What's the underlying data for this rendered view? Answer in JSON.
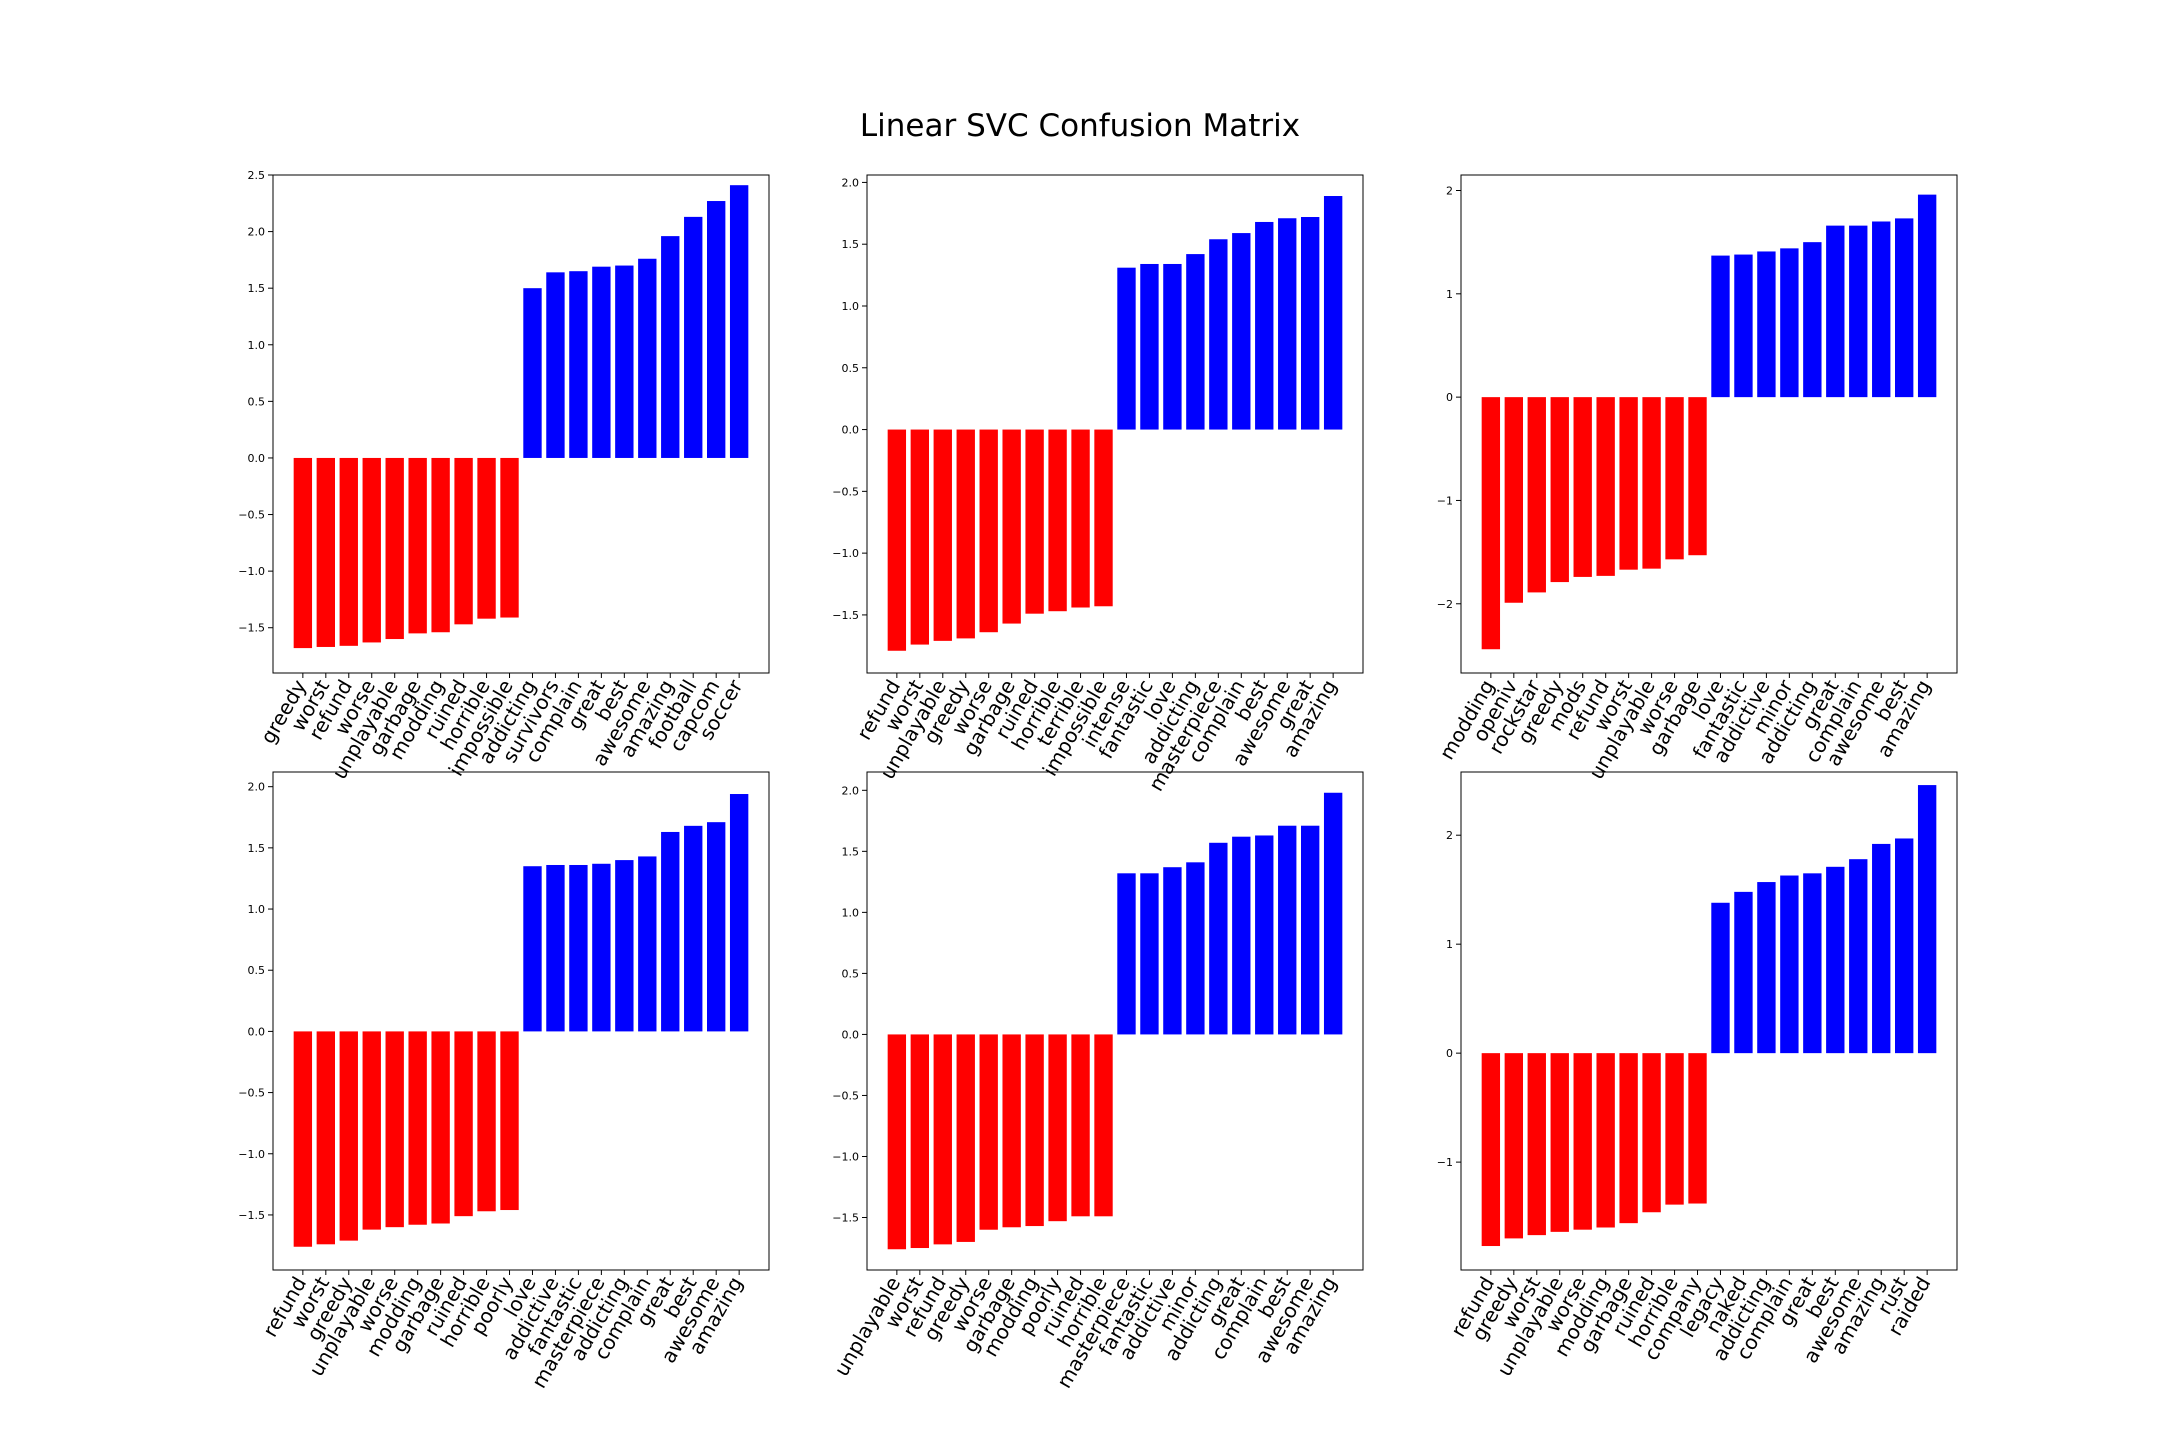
{
  "title": "Linear SVC Confusion Matrix",
  "colors": {
    "negative": "#ff0000",
    "positive": "#0000ff",
    "axis": "#000000"
  },
  "chart_data": [
    {
      "type": "bar",
      "categories": [
        "greedy",
        "worst",
        "refund",
        "worse",
        "unplayable",
        "garbage",
        "modding",
        "ruined",
        "horrible",
        "impossible",
        "addicting",
        "survivors",
        "complain",
        "great",
        "best",
        "awesome",
        "amazing",
        "football",
        "capcom",
        "soccer"
      ],
      "values": [
        -1.68,
        -1.67,
        -1.66,
        -1.63,
        -1.6,
        -1.55,
        -1.54,
        -1.47,
        -1.42,
        -1.41,
        1.5,
        1.64,
        1.65,
        1.69,
        1.7,
        1.76,
        1.96,
        2.13,
        2.27,
        2.41
      ],
      "ylim": [
        -1.9,
        2.5
      ],
      "yticks": [
        -1.5,
        -1.0,
        -0.5,
        0.0,
        0.5,
        1.0,
        1.5,
        2.0,
        2.5
      ],
      "ytick_labels": [
        "−1.5",
        "−1.0",
        "−0.5",
        "0.0",
        "0.5",
        "1.0",
        "1.5",
        "2.0",
        "2.5"
      ]
    },
    {
      "type": "bar",
      "categories": [
        "refund",
        "worst",
        "unplayable",
        "greedy",
        "worse",
        "garbage",
        "ruined",
        "horrible",
        "terrible",
        "impossible",
        "intense",
        "fantastic",
        "love",
        "addicting",
        "masterpiece",
        "complain",
        "best",
        "awesome",
        "great",
        "amazing"
      ],
      "values": [
        -1.79,
        -1.74,
        -1.71,
        -1.69,
        -1.64,
        -1.57,
        -1.49,
        -1.47,
        -1.44,
        -1.43,
        1.31,
        1.34,
        1.34,
        1.42,
        1.54,
        1.59,
        1.68,
        1.71,
        1.72,
        1.89
      ],
      "ylim": [
        -1.97,
        2.06
      ],
      "yticks": [
        -1.5,
        -1.0,
        -0.5,
        0.0,
        0.5,
        1.0,
        1.5,
        2.0
      ],
      "ytick_labels": [
        "−1.5",
        "−1.0",
        "−0.5",
        "0.0",
        "0.5",
        "1.0",
        "1.5",
        "2.0"
      ]
    },
    {
      "type": "bar",
      "categories": [
        "modding",
        "openiv",
        "rockstar",
        "greedy",
        "mods",
        "refund",
        "worst",
        "unplayable",
        "worse",
        "garbage",
        "love",
        "fantastic",
        "addictive",
        "minor",
        "addicting",
        "great",
        "complain",
        "awesome",
        "best",
        "amazing"
      ],
      "values": [
        -2.44,
        -1.99,
        -1.89,
        -1.79,
        -1.74,
        -1.73,
        -1.67,
        -1.66,
        -1.57,
        -1.53,
        1.37,
        1.38,
        1.41,
        1.44,
        1.5,
        1.66,
        1.66,
        1.7,
        1.73,
        1.96
      ],
      "ylim": [
        -2.67,
        2.15
      ],
      "yticks": [
        -2,
        -1,
        0,
        1,
        2
      ],
      "ytick_labels": [
        "−2",
        "−1",
        "0",
        "1",
        "2"
      ]
    },
    {
      "type": "bar",
      "categories": [
        "refund",
        "worst",
        "greedy",
        "unplayable",
        "worse",
        "modding",
        "garbage",
        "ruined",
        "horrible",
        "poorly",
        "love",
        "addictive",
        "fantastic",
        "masterpiece",
        "addicting",
        "complain",
        "great",
        "best",
        "awesome",
        "amazing"
      ],
      "values": [
        -1.76,
        -1.74,
        -1.71,
        -1.62,
        -1.6,
        -1.58,
        -1.57,
        -1.51,
        -1.47,
        -1.46,
        1.35,
        1.36,
        1.36,
        1.37,
        1.4,
        1.43,
        1.63,
        1.68,
        1.71,
        1.94
      ],
      "ylim": [
        -1.95,
        2.12
      ],
      "yticks": [
        -1.5,
        -1.0,
        -0.5,
        0.0,
        0.5,
        1.0,
        1.5,
        2.0
      ],
      "ytick_labels": [
        "−1.5",
        "−1.0",
        "−0.5",
        "0.0",
        "0.5",
        "1.0",
        "1.5",
        "2.0"
      ]
    },
    {
      "type": "bar",
      "categories": [
        "unplayable",
        "worst",
        "refund",
        "greedy",
        "worse",
        "garbage",
        "modding",
        "poorly",
        "ruined",
        "horrible",
        "masterpiece",
        "fantastic",
        "addictive",
        "minor",
        "addicting",
        "great",
        "complain",
        "best",
        "awesome",
        "amazing"
      ],
      "values": [
        -1.76,
        -1.75,
        -1.72,
        -1.7,
        -1.6,
        -1.58,
        -1.57,
        -1.53,
        -1.49,
        -1.49,
        1.32,
        1.32,
        1.37,
        1.41,
        1.57,
        1.62,
        1.63,
        1.71,
        1.71,
        1.98
      ],
      "ylim": [
        -1.93,
        2.15
      ],
      "yticks": [
        -1.5,
        -1.0,
        -0.5,
        0.0,
        0.5,
        1.0,
        1.5,
        2.0
      ],
      "ytick_labels": [
        "−1.5",
        "−1.0",
        "−0.5",
        "0.0",
        "0.5",
        "1.0",
        "1.5",
        "2.0"
      ]
    },
    {
      "type": "bar",
      "categories": [
        "refund",
        "greedy",
        "worst",
        "unplayable",
        "worse",
        "modding",
        "garbage",
        "ruined",
        "horrible",
        "company",
        "legacy",
        "naked",
        "addicting",
        "complain",
        "great",
        "best",
        "awesome",
        "amazing",
        "rust",
        "raided"
      ],
      "values": [
        -1.77,
        -1.7,
        -1.67,
        -1.64,
        -1.62,
        -1.6,
        -1.56,
        -1.46,
        -1.39,
        -1.38,
        1.38,
        1.48,
        1.57,
        1.63,
        1.65,
        1.71,
        1.78,
        1.92,
        1.97,
        2.46
      ],
      "ylim": [
        -1.99,
        2.58
      ],
      "yticks": [
        -1,
        0,
        1,
        2
      ],
      "ytick_labels": [
        "−1",
        "0",
        "1",
        "2"
      ]
    }
  ]
}
